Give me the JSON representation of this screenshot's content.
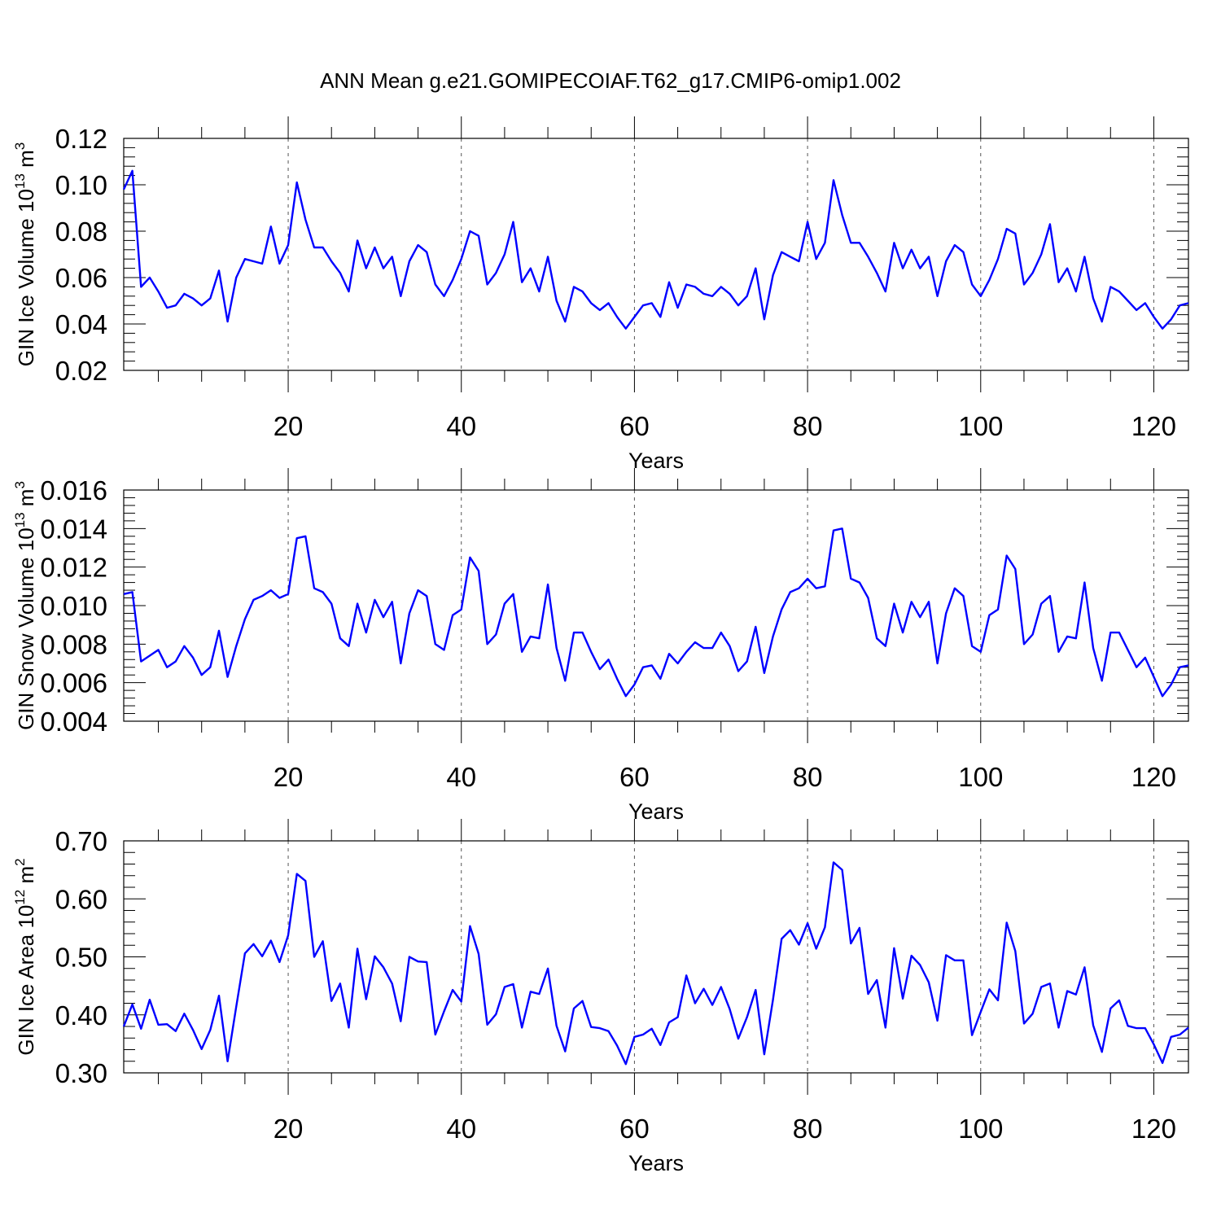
{
  "title": "ANN Mean g.e21.GOMIPECOIAF.T62_g17.CMIP6-omip1.002",
  "chart_data": [
    {
      "type": "line",
      "ylabel": {
        "main": "GIN Ice Volume 10",
        "exp": "13",
        "unit": " m",
        "unit_exp": "3"
      },
      "xlabel": "Years",
      "xlim": [
        1,
        124
      ],
      "ylim": [
        0.02,
        0.12
      ],
      "yticks": [
        0.02,
        0.04,
        0.06,
        0.08,
        0.1,
        0.12
      ],
      "ytick_labels": [
        "0.02",
        "0.04",
        "0.06",
        "0.08",
        "0.10",
        "0.12"
      ],
      "xticks": [
        20,
        40,
        60,
        80,
        100,
        120
      ],
      "xtick_labels": [
        "20",
        "40",
        "60",
        "80",
        "100",
        "120"
      ],
      "grid": "vertical dashed at major x ticks",
      "color": "#0000ff",
      "start_year": 1,
      "values": [
        0.098,
        0.106,
        0.056,
        0.06,
        0.054,
        0.047,
        0.048,
        0.053,
        0.051,
        0.048,
        0.051,
        0.063,
        0.041,
        0.06,
        0.068,
        0.067,
        0.066,
        0.082,
        0.066,
        0.074,
        0.101,
        0.085,
        0.073,
        0.073,
        0.067,
        0.062,
        0.054,
        0.076,
        0.064,
        0.073,
        0.064,
        0.069,
        0.052,
        0.067,
        0.074,
        0.071,
        0.057,
        0.052,
        0.059,
        0.068,
        0.08,
        0.078,
        0.057,
        0.062,
        0.07,
        0.084,
        0.058,
        0.064,
        0.054,
        0.069,
        0.05,
        0.041,
        0.056,
        0.054,
        0.049,
        0.046,
        0.049,
        0.043,
        0.038,
        0.043,
        0.048,
        0.049,
        0.043,
        0.058,
        0.047,
        0.057,
        0.056,
        0.053,
        0.052,
        0.056,
        0.053,
        0.048,
        0.052,
        0.064,
        0.042,
        0.061,
        0.071,
        0.069,
        0.067,
        0.084,
        0.068,
        0.075,
        0.102,
        0.087,
        0.075,
        0.075,
        0.069,
        0.062,
        0.054,
        0.075,
        0.064,
        0.072,
        0.064,
        0.069,
        0.052,
        0.067,
        0.074,
        0.071,
        0.057,
        0.052,
        0.059,
        0.068,
        0.081,
        0.079,
        0.057,
        0.062,
        0.07,
        0.083,
        0.058,
        0.064,
        0.054,
        0.069,
        0.051,
        0.041,
        0.056,
        0.054,
        0.05,
        0.046,
        0.049,
        0.043,
        0.038,
        0.042,
        0.048,
        0.049
      ]
    },
    {
      "type": "line",
      "ylabel": {
        "main": "GIN Snow Volume 10",
        "exp": "13",
        "unit": " m",
        "unit_exp": "3"
      },
      "xlabel": "Years",
      "xlim": [
        1,
        124
      ],
      "ylim": [
        0.004,
        0.016
      ],
      "yticks": [
        0.004,
        0.006,
        0.008,
        0.01,
        0.012,
        0.014,
        0.016
      ],
      "ytick_labels": [
        "0.004",
        "0.006",
        "0.008",
        "0.010",
        "0.012",
        "0.014",
        "0.016"
      ],
      "xticks": [
        20,
        40,
        60,
        80,
        100,
        120
      ],
      "xtick_labels": [
        "20",
        "40",
        "60",
        "80",
        "100",
        "120"
      ],
      "grid": "vertical dashed at major x ticks",
      "color": "#0000ff",
      "start_year": 1,
      "values": [
        0.0106,
        0.0107,
        0.0071,
        0.0074,
        0.0077,
        0.0068,
        0.0071,
        0.0079,
        0.0073,
        0.0064,
        0.0068,
        0.0087,
        0.0063,
        0.0079,
        0.0093,
        0.0103,
        0.0105,
        0.0108,
        0.0104,
        0.0106,
        0.0135,
        0.0136,
        0.0109,
        0.0107,
        0.0101,
        0.0083,
        0.0079,
        0.0101,
        0.0086,
        0.0103,
        0.0094,
        0.0102,
        0.007,
        0.0096,
        0.0108,
        0.0105,
        0.008,
        0.0077,
        0.0095,
        0.0098,
        0.0125,
        0.0118,
        0.008,
        0.0085,
        0.0101,
        0.0106,
        0.0076,
        0.0084,
        0.0083,
        0.0111,
        0.0078,
        0.0061,
        0.0086,
        0.0086,
        0.0076,
        0.0067,
        0.0072,
        0.0062,
        0.0053,
        0.0059,
        0.0068,
        0.0069,
        0.0062,
        0.0075,
        0.007,
        0.0076,
        0.0081,
        0.0078,
        0.0078,
        0.0086,
        0.0079,
        0.0066,
        0.0071,
        0.0089,
        0.0065,
        0.0084,
        0.0098,
        0.0107,
        0.0109,
        0.0114,
        0.0109,
        0.011,
        0.0139,
        0.014,
        0.0114,
        0.0112,
        0.0104,
        0.0083,
        0.0079,
        0.0101,
        0.0086,
        0.0102,
        0.0094,
        0.0102,
        0.007,
        0.0096,
        0.0109,
        0.0105,
        0.0079,
        0.0076,
        0.0095,
        0.0098,
        0.0126,
        0.0119,
        0.008,
        0.0085,
        0.0101,
        0.0105,
        0.0076,
        0.0084,
        0.0083,
        0.0112,
        0.0078,
        0.0061,
        0.0086,
        0.0086,
        0.0077,
        0.0068,
        0.0073,
        0.0063,
        0.0053,
        0.0059,
        0.0068,
        0.0069
      ]
    },
    {
      "type": "line",
      "ylabel": {
        "main": "GIN Ice Area 10",
        "exp": "12",
        "unit": " m",
        "unit_exp": "2"
      },
      "xlabel": "Years",
      "xlim": [
        1,
        124
      ],
      "ylim": [
        0.3,
        0.7
      ],
      "yticks": [
        0.3,
        0.4,
        0.5,
        0.6,
        0.7
      ],
      "ytick_labels": [
        "0.30",
        "0.40",
        "0.50",
        "0.60",
        "0.70"
      ],
      "xticks": [
        20,
        40,
        60,
        80,
        100,
        120
      ],
      "xtick_labels": [
        "20",
        "40",
        "60",
        "80",
        "100",
        "120"
      ],
      "grid": "vertical dashed at major x ticks",
      "color": "#0000ff",
      "start_year": 1,
      "values": [
        0.38,
        0.418,
        0.376,
        0.426,
        0.383,
        0.384,
        0.372,
        0.402,
        0.374,
        0.341,
        0.374,
        0.433,
        0.32,
        0.414,
        0.506,
        0.522,
        0.501,
        0.528,
        0.491,
        0.537,
        0.643,
        0.631,
        0.5,
        0.527,
        0.424,
        0.454,
        0.378,
        0.514,
        0.427,
        0.501,
        0.482,
        0.454,
        0.389,
        0.5,
        0.492,
        0.491,
        0.366,
        0.406,
        0.443,
        0.423,
        0.553,
        0.505,
        0.383,
        0.401,
        0.448,
        0.453,
        0.378,
        0.44,
        0.436,
        0.48,
        0.381,
        0.337,
        0.411,
        0.424,
        0.379,
        0.377,
        0.372,
        0.347,
        0.315,
        0.362,
        0.366,
        0.376,
        0.348,
        0.387,
        0.396,
        0.468,
        0.42,
        0.445,
        0.417,
        0.448,
        0.41,
        0.359,
        0.396,
        0.443,
        0.332,
        0.426,
        0.531,
        0.546,
        0.521,
        0.558,
        0.514,
        0.551,
        0.663,
        0.65,
        0.523,
        0.55,
        0.436,
        0.46,
        0.378,
        0.515,
        0.428,
        0.502,
        0.486,
        0.456,
        0.39,
        0.503,
        0.494,
        0.494,
        0.365,
        0.405,
        0.444,
        0.425,
        0.559,
        0.51,
        0.385,
        0.402,
        0.448,
        0.454,
        0.378,
        0.441,
        0.435,
        0.482,
        0.382,
        0.336,
        0.411,
        0.425,
        0.381,
        0.377,
        0.377,
        0.349,
        0.317,
        0.362,
        0.366,
        0.378
      ]
    }
  ]
}
